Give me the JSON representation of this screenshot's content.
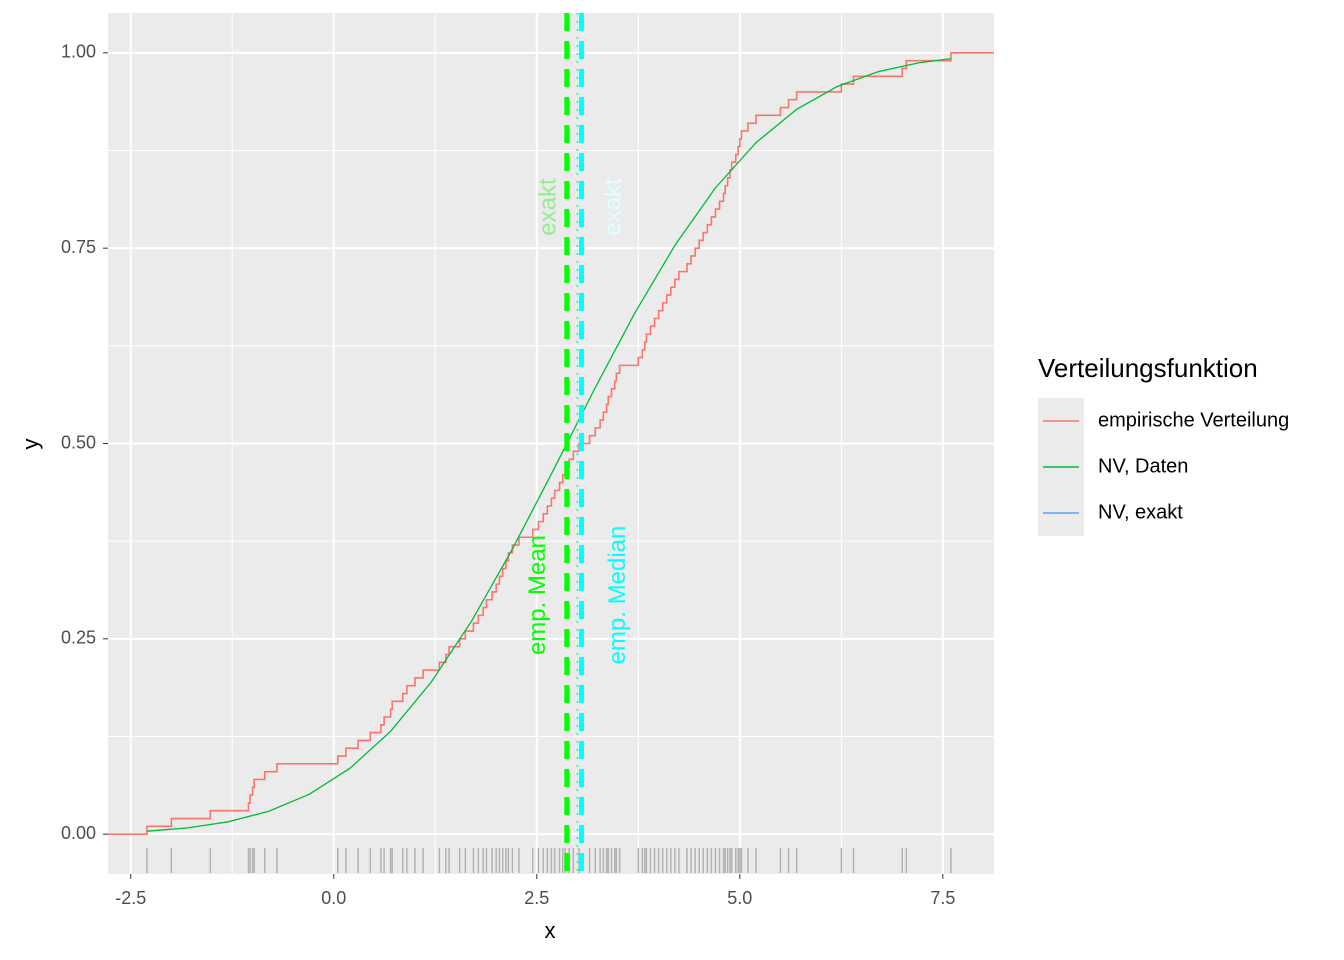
{
  "chart_data": {
    "type": "ecdf",
    "xlabel": "x",
    "ylabel": "y",
    "xlim": [
      -2.78,
      8.13
    ],
    "ylim": [
      -0.051,
      1.051
    ],
    "xticks": [
      -2.5,
      {
        "value": 0,
        "label": "0.0"
      },
      2.5,
      {
        "value": 5,
        "label": "5.0"
      },
      7.5
    ],
    "yticks": [
      {
        "value": 0,
        "label": "0.00"
      },
      {
        "value": 0.25,
        "label": "0.25"
      },
      {
        "value": 0.5,
        "label": "0.50"
      },
      {
        "value": 0.75,
        "label": "0.75"
      },
      {
        "value": 1,
        "label": "1.00"
      }
    ],
    "grid": true,
    "legend_title": "Verteilungsfunktion",
    "legend_position": "right",
    "rug_color": "#b3b3b3",
    "series": [
      {
        "name": "empirische Verteilung",
        "color": "#f8766d",
        "kind": "step",
        "x": [
          -2.3,
          -2.0,
          -1.52,
          -1.05,
          -1.03,
          -1.0,
          -0.98,
          -0.85,
          -0.7,
          0.05,
          0.15,
          0.3,
          0.45,
          0.58,
          0.62,
          0.7,
          0.72,
          0.85,
          0.9,
          1.0,
          1.1,
          1.3,
          1.38,
          1.42,
          1.55,
          1.62,
          1.72,
          1.78,
          1.84,
          1.88,
          1.95,
          2.0,
          2.04,
          2.08,
          2.12,
          2.15,
          2.2,
          2.28,
          2.45,
          2.52,
          2.58,
          2.63,
          2.68,
          2.72,
          2.78,
          2.82,
          2.85,
          2.9,
          2.95,
          3.02,
          3.15,
          3.22,
          3.28,
          3.32,
          3.36,
          3.38,
          3.42,
          3.46,
          3.48,
          3.52,
          3.75,
          3.8,
          3.83,
          3.85,
          3.9,
          3.95,
          4.0,
          4.05,
          4.1,
          4.15,
          4.2,
          4.25,
          4.35,
          4.4,
          4.45,
          4.5,
          4.55,
          4.6,
          4.65,
          4.7,
          4.75,
          4.8,
          4.82,
          4.85,
          4.88,
          4.9,
          4.95,
          4.98,
          5.0,
          5.02,
          5.1,
          5.2,
          5.5,
          5.6,
          5.7,
          6.25,
          6.4,
          7.0,
          7.05,
          7.6
        ],
        "values": [
          0.01,
          0.02,
          0.03,
          0.04,
          0.05,
          0.06,
          0.07,
          0.08,
          0.09,
          0.1,
          0.11,
          0.12,
          0.13,
          0.14,
          0.15,
          0.16,
          0.17,
          0.18,
          0.19,
          0.2,
          0.21,
          0.22,
          0.23,
          0.24,
          0.25,
          0.26,
          0.27,
          0.28,
          0.29,
          0.3,
          0.31,
          0.32,
          0.33,
          0.34,
          0.35,
          0.36,
          0.37,
          0.38,
          0.39,
          0.4,
          0.41,
          0.42,
          0.43,
          0.44,
          0.45,
          0.46,
          0.47,
          0.48,
          0.49,
          0.5,
          0.51,
          0.52,
          0.53,
          0.54,
          0.55,
          0.56,
          0.57,
          0.58,
          0.59,
          0.6,
          0.61,
          0.62,
          0.63,
          0.64,
          0.65,
          0.66,
          0.67,
          0.68,
          0.69,
          0.7,
          0.71,
          0.72,
          0.73,
          0.74,
          0.75,
          0.76,
          0.77,
          0.78,
          0.79,
          0.8,
          0.81,
          0.82,
          0.83,
          0.84,
          0.85,
          0.86,
          0.87,
          0.88,
          0.89,
          0.9,
          0.91,
          0.92,
          0.93,
          0.94,
          0.95,
          0.96,
          0.97,
          0.98,
          0.99,
          1.0
        ]
      },
      {
        "name": "NV, Daten",
        "color": "#00ba38",
        "kind": "line",
        "x": [
          -2.3,
          -1.8,
          -1.3,
          -0.8,
          -0.3,
          0.2,
          0.7,
          1.2,
          1.7,
          2.2,
          2.7,
          3.2,
          3.7,
          4.2,
          4.7,
          5.2,
          5.7,
          6.2,
          6.7,
          7.2,
          7.6
        ],
        "values": [
          0.0038,
          0.008,
          0.0158,
          0.0293,
          0.0511,
          0.0844,
          0.1316,
          0.1946,
          0.2732,
          0.365,
          0.465,
          0.5675,
          0.6657,
          0.7536,
          0.8272,
          0.8851,
          0.9277,
          0.9569,
          0.9758,
          0.9872,
          0.9926
        ]
      },
      {
        "name": "NV, exakt",
        "color": "#619cff",
        "kind": "line",
        "x": [],
        "values": []
      }
    ],
    "vlines": [
      {
        "label": "emp. Mean",
        "x": 2.87,
        "color": "#00ff00",
        "label_color": "#00ff00",
        "style": "dashed",
        "side": "left"
      },
      {
        "label": "exakt",
        "x": 3.0,
        "color": "#00ff00",
        "label_color": "#90ee90",
        "style": "dotted",
        "side": "left"
      },
      {
        "label": "emp. Median",
        "x": 3.05,
        "color": "#00ffff",
        "label_color": "#00ffff",
        "style": "dashed",
        "side": "right"
      },
      {
        "label": "exakt",
        "x": 3.0,
        "color": "#00ffff",
        "label_color": "#e0ffff",
        "style": "dotted",
        "side": "right"
      }
    ]
  }
}
